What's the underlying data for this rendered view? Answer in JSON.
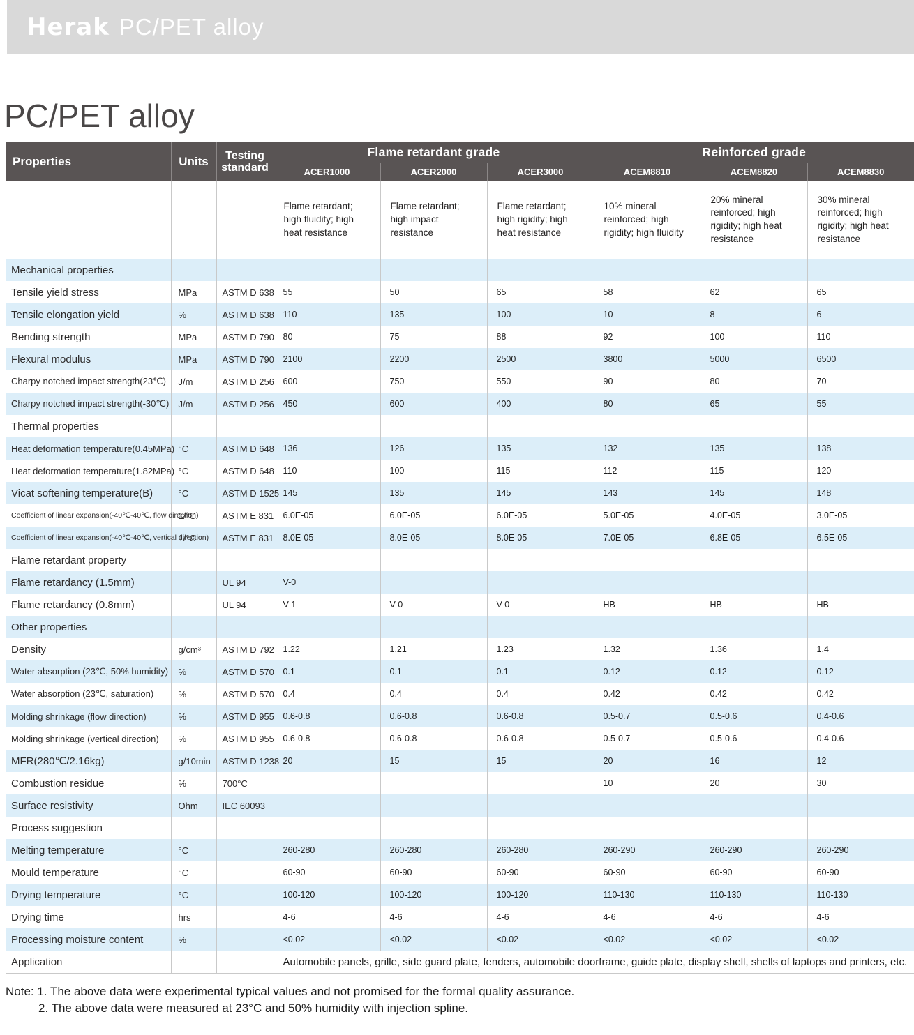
{
  "banner": {
    "brand": "Herak",
    "subtitle": "PC/PET alloy"
  },
  "page_title": "PC/PET alloy",
  "colors": {
    "banner_bg": "#d9d9d9",
    "header_bg": "#595454",
    "header_text": "#ffffff",
    "row_stripe": "#dceef9",
    "grid_line": "#c9c9c9",
    "title_text": "#4a4747"
  },
  "table": {
    "col_headers": {
      "properties": "Properties",
      "units": "Units",
      "testing_standard": "Testing standard",
      "groups": [
        {
          "label": "Flame retardant grade",
          "models": [
            "ACER1000",
            "ACER2000",
            "ACER3000"
          ]
        },
        {
          "label": "Reinforced grade",
          "models": [
            "ACEM8810",
            "ACEM8820",
            "ACEM8830"
          ]
        }
      ]
    },
    "descriptions": [
      "Flame retardant; high fluidity; high heat resistance",
      "Flame retardant; high impact resistance",
      "Flame retardant; high rigidity; high heat resistance",
      "10% mineral reinforced; high rigidity; high fluidity",
      "20% mineral reinforced; high rigidity; high heat resistance",
      "30% mineral reinforced; high rigidity; high heat resistance"
    ],
    "rows": [
      {
        "type": "section",
        "label": "Mechanical properties"
      },
      {
        "type": "data",
        "label": "Tensile yield stress",
        "unit": "MPa",
        "standard": "ASTM D 638",
        "values": [
          "55",
          "50",
          "65",
          "58",
          "62",
          "65"
        ]
      },
      {
        "type": "data",
        "label": "Tensile elongation yield",
        "unit": "%",
        "standard": "ASTM D 638",
        "values": [
          "110",
          "135",
          "100",
          "10",
          "8",
          "6"
        ]
      },
      {
        "type": "data",
        "label": "Bending strength",
        "unit": "MPa",
        "standard": "ASTM D 790",
        "values": [
          "80",
          "75",
          "88",
          "92",
          "100",
          "110"
        ]
      },
      {
        "type": "data",
        "label": "Flexural modulus",
        "unit": "MPa",
        "standard": "ASTM D 790",
        "values": [
          "2100",
          "2200",
          "2500",
          "3800",
          "5000",
          "6500"
        ]
      },
      {
        "type": "data",
        "label": "Charpy notched impact strength(23℃)",
        "unit": "J/m",
        "standard": "ASTM D 256",
        "values": [
          "600",
          "750",
          "550",
          "90",
          "80",
          "70"
        ]
      },
      {
        "type": "data",
        "label": "Charpy notched impact strength(-30℃)",
        "unit": "J/m",
        "standard": "ASTM D 256",
        "values": [
          "450",
          "600",
          "400",
          "80",
          "65",
          "55"
        ]
      },
      {
        "type": "section",
        "label": "Thermal properties"
      },
      {
        "type": "data",
        "label": "Heat deformation temperature(0.45MPa)",
        "unit": "°C",
        "standard": "ASTM D 648",
        "values": [
          "136",
          "126",
          "135",
          "132",
          "135",
          "138"
        ]
      },
      {
        "type": "data",
        "label": "Heat deformation temperature(1.82MPa)",
        "unit": "°C",
        "standard": "ASTM D 648",
        "values": [
          "110",
          "100",
          "115",
          "112",
          "115",
          "120"
        ]
      },
      {
        "type": "data",
        "label": "Vicat softening temperature(B)",
        "unit": "°C",
        "standard": "ASTM D 1525",
        "values": [
          "145",
          "135",
          "145",
          "143",
          "145",
          "148"
        ]
      },
      {
        "type": "data",
        "label": "Coefficient of linear expansion(-40℃-40℃, flow direction)",
        "unit": "1/°C",
        "standard": "ASTM E 831",
        "values": [
          "6.0E-05",
          "6.0E-05",
          "6.0E-05",
          "5.0E-05",
          "4.0E-05",
          "3.0E-05"
        ]
      },
      {
        "type": "data",
        "label": "Coefficient of linear expansion(-40℃-40℃, vertical direction)",
        "unit": "1/°C",
        "standard": "ASTM E 831",
        "values": [
          "8.0E-05",
          "8.0E-05",
          "8.0E-05",
          "7.0E-05",
          "6.8E-05",
          "6.5E-05"
        ]
      },
      {
        "type": "section",
        "label": "Flame retardant property"
      },
      {
        "type": "data",
        "label": "Flame retardancy (1.5mm)",
        "unit": "",
        "standard": "UL 94",
        "values": [
          "V-0",
          "",
          "",
          "",
          "",
          ""
        ]
      },
      {
        "type": "data",
        "label": "Flame retardancy (0.8mm)",
        "unit": "",
        "standard": "UL 94",
        "values": [
          "V-1",
          "V-0",
          "V-0",
          "HB",
          "HB",
          "HB"
        ]
      },
      {
        "type": "section",
        "label": "Other properties"
      },
      {
        "type": "data",
        "label": "Density",
        "unit": "g/cm³",
        "standard": "ASTM D 792",
        "values": [
          "1.22",
          "1.21",
          "1.23",
          "1.32",
          "1.36",
          "1.4"
        ]
      },
      {
        "type": "data",
        "label": "Water absorption (23℃, 50% humidity)",
        "unit": "%",
        "standard": "ASTM D 570",
        "values": [
          "0.1",
          "0.1",
          "0.1",
          "0.12",
          "0.12",
          "0.12"
        ]
      },
      {
        "type": "data",
        "label": "Water absorption (23℃, saturation)",
        "unit": "%",
        "standard": "ASTM D 570",
        "values": [
          "0.4",
          "0.4",
          "0.4",
          "0.42",
          "0.42",
          "0.42"
        ]
      },
      {
        "type": "data",
        "label": "Molding shrinkage (flow direction)",
        "unit": "%",
        "standard": "ASTM D 955",
        "values": [
          "0.6-0.8",
          "0.6-0.8",
          "0.6-0.8",
          "0.5-0.7",
          "0.5-0.6",
          "0.4-0.6"
        ]
      },
      {
        "type": "data",
        "label": "Molding shrinkage (vertical direction)",
        "unit": "%",
        "standard": "ASTM D 955",
        "values": [
          "0.6-0.8",
          "0.6-0.8",
          "0.6-0.8",
          "0.5-0.7",
          "0.5-0.6",
          "0.4-0.6"
        ]
      },
      {
        "type": "data",
        "label": "MFR(280℃/2.16kg)",
        "unit": "g/10min",
        "standard": "ASTM D 1238",
        "values": [
          "20",
          "15",
          "15",
          "20",
          "16",
          "12"
        ]
      },
      {
        "type": "data",
        "label": "Combustion residue",
        "unit": "%",
        "standard": "700°C",
        "values": [
          "",
          "",
          "",
          "10",
          "20",
          "30"
        ]
      },
      {
        "type": "data",
        "label": "Surface resistivity",
        "unit": "Ohm",
        "standard": "IEC 60093",
        "values": [
          "",
          "",
          "",
          "",
          "",
          ""
        ]
      },
      {
        "type": "section",
        "label": "Process suggestion"
      },
      {
        "type": "data",
        "label": "Melting temperature",
        "unit": "°C",
        "standard": "",
        "values": [
          "260-280",
          "260-280",
          "260-280",
          "260-290",
          "260-290",
          "260-290"
        ]
      },
      {
        "type": "data",
        "label": "Mould temperature",
        "unit": "°C",
        "standard": "",
        "values": [
          "60-90",
          "60-90",
          "60-90",
          "60-90",
          "60-90",
          "60-90"
        ]
      },
      {
        "type": "data",
        "label": "Drying temperature",
        "unit": "°C",
        "standard": "",
        "values": [
          "100-120",
          "100-120",
          "100-120",
          "110-130",
          "110-130",
          "110-130"
        ]
      },
      {
        "type": "data",
        "label": "Drying time",
        "unit": "hrs",
        "standard": "",
        "values": [
          "4-6",
          "4-6",
          "4-6",
          "4-6",
          "4-6",
          "4-6"
        ]
      },
      {
        "type": "data",
        "label": "Processing moisture content",
        "unit": "%",
        "standard": "",
        "values": [
          "<0.02",
          "<0.02",
          "<0.02",
          "<0.02",
          "<0.02",
          "<0.02"
        ]
      },
      {
        "type": "application",
        "label": "Application",
        "text": "Automobile panels, grille, side guard plate, fenders, automobile doorframe, guide plate, display shell, shells of laptops and printers, etc."
      }
    ]
  },
  "notes": [
    "Note: 1. The above data were experimental typical values and not promised for the formal quality assurance.",
    "2. The above data were measured at 23°C and 50% humidity with injection spline."
  ]
}
